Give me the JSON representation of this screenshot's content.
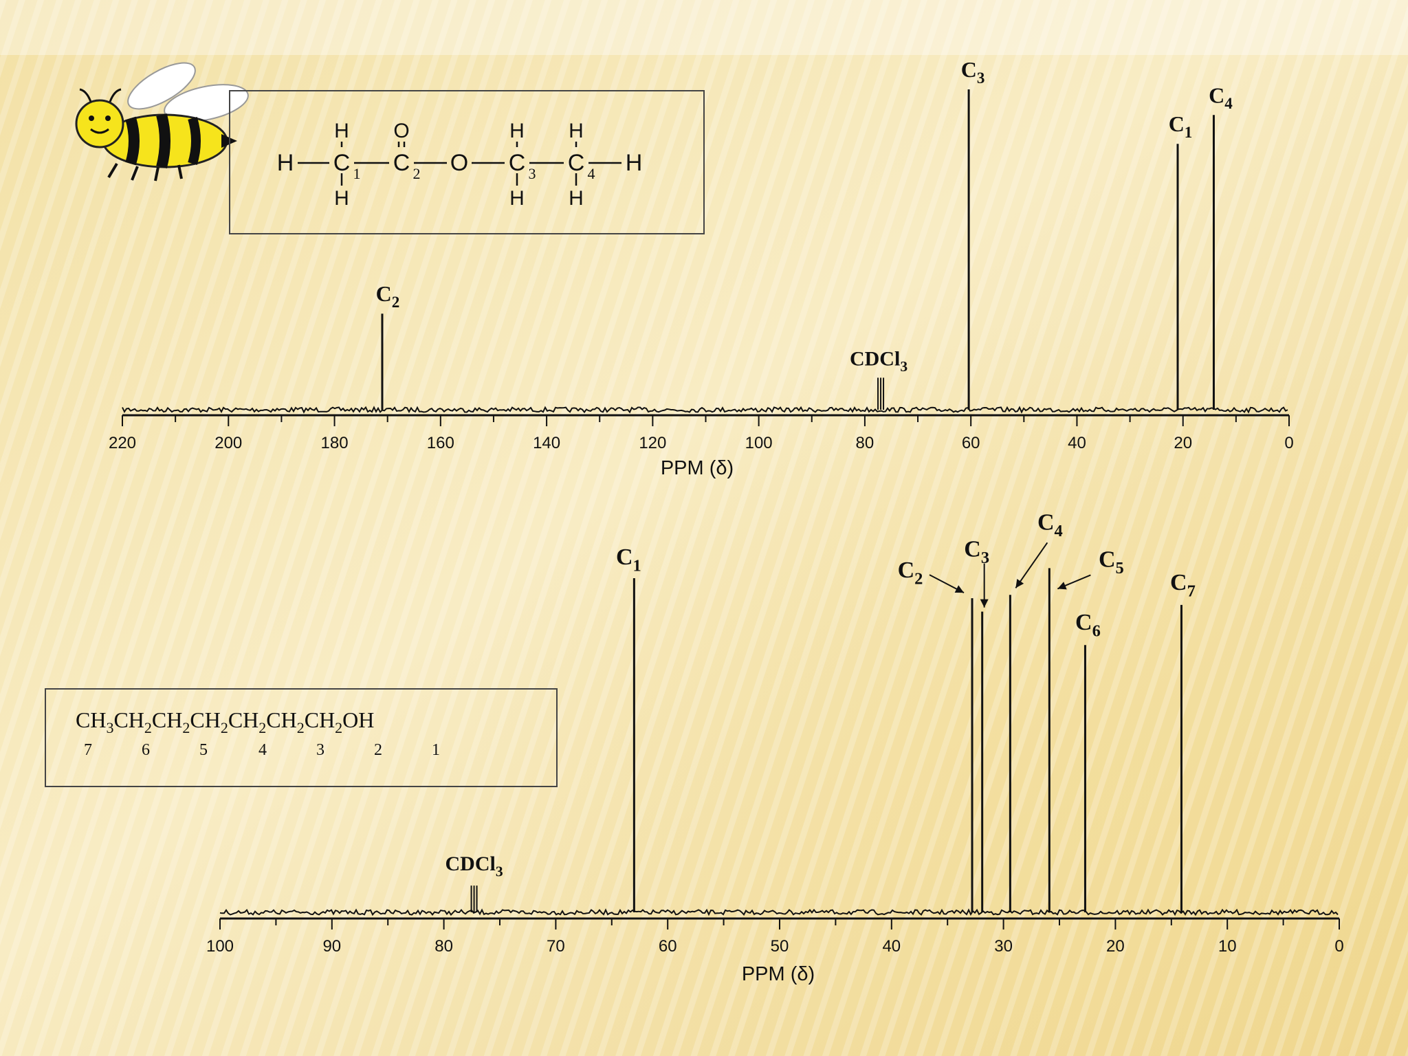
{
  "chart_data": [
    {
      "type": "line",
      "xlabel": "PPM (δ)",
      "xlim": [
        220,
        0
      ],
      "x_ticks": [
        "220",
        "200",
        "180",
        "160",
        "140",
        "120",
        "100",
        "80",
        "60",
        "40",
        "20",
        "0"
      ],
      "structure": {
        "atoms_row": [
          "H",
          "C",
          "C",
          "O",
          "C",
          "C",
          "H"
        ],
        "subscripts": [
          "1",
          "2",
          "3",
          "4"
        ],
        "top_h": [
          "H",
          "O",
          "H",
          "H"
        ],
        "bottom_h": [
          "H",
          "H",
          "H"
        ]
      },
      "peaks": [
        {
          "label": "C",
          "sub": "2",
          "x": 171.0,
          "height": 0.3
        },
        {
          "label": "CDCl",
          "sub": "3",
          "x": 77.0,
          "height": 0.1
        },
        {
          "label": "C",
          "sub": "3",
          "x": 60.4,
          "height": 1.0
        },
        {
          "label": "C",
          "sub": "1",
          "x": 21.0,
          "height": 0.83
        },
        {
          "label": "C",
          "sub": "4",
          "x": 14.2,
          "height": 0.92
        }
      ]
    },
    {
      "type": "line",
      "xlabel": "PPM (δ)",
      "xlim": [
        100,
        0
      ],
      "x_ticks": [
        "100",
        "90",
        "80",
        "70",
        "60",
        "50",
        "40",
        "30",
        "20",
        "10",
        "0"
      ],
      "structure": {
        "formula": "CH3CH2CH2CH2CH2CH2CH2OH",
        "numbers": [
          "7",
          "6",
          "5",
          "4",
          "3",
          "2",
          "1"
        ]
      },
      "peaks": [
        {
          "label": "CDCl",
          "sub": "3",
          "x": 77.3,
          "height": 0.08
        },
        {
          "label": "C",
          "sub": "1",
          "x": 63.0,
          "height": 1.0
        },
        {
          "label": "C",
          "sub": "2",
          "x": 32.8,
          "height": 0.94
        },
        {
          "label": "C",
          "sub": "3",
          "x": 31.9,
          "height": 0.9
        },
        {
          "label": "C",
          "sub": "4",
          "x": 29.4,
          "height": 0.95
        },
        {
          "label": "C",
          "sub": "5",
          "x": 25.9,
          "height": 1.03
        },
        {
          "label": "C",
          "sub": "6",
          "x": 22.7,
          "height": 0.8
        },
        {
          "label": "C",
          "sub": "7",
          "x": 14.1,
          "height": 0.92
        }
      ]
    }
  ],
  "colors": {
    "background_light": "#faf0cf",
    "background_dark": "#e9cd7a",
    "ink": "#111111",
    "bee_yellow": "#f6e41c",
    "bee_wing": "#ffffff"
  },
  "decor": {
    "icon": "bee-icon"
  }
}
